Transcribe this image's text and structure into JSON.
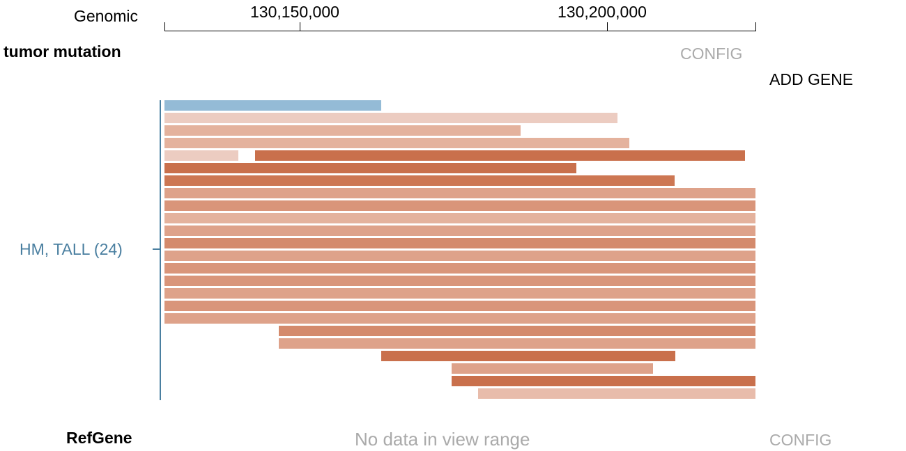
{
  "ruler": {
    "label": "Genomic",
    "ticks": [
      "130,150,000",
      "130,200,000"
    ]
  },
  "tumor_track": {
    "title": "tumor mutation",
    "config_label": "CONFIG",
    "add_gene_label": "ADD GENE",
    "group_label": "HM, TALL (24)",
    "group_color": "#4a7fa0"
  },
  "refgene_track": {
    "title": "RefGene",
    "message": "No data in view range",
    "config_label": "CONFIG"
  },
  "colors": {
    "blue": "#94bbd6",
    "palest": "#ecccc1",
    "pale": "#e4b29d",
    "medium": "#d9957a",
    "dark": "#c9704c"
  }
}
